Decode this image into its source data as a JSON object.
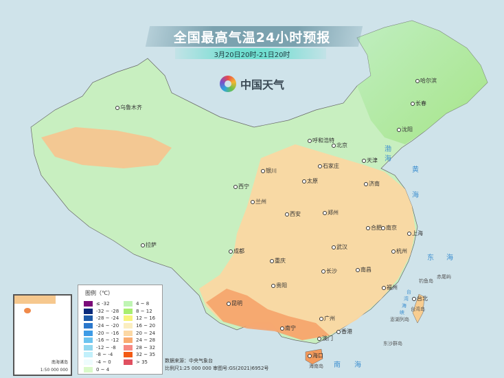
{
  "header": {
    "title": "全国最高气温24小时预报",
    "subtitle": "3月20日20时-21日20时",
    "brand": "中国天气"
  },
  "cities": [
    {
      "name": "哈尔滨"
    },
    {
      "name": "长春"
    },
    {
      "name": "沈阳"
    },
    {
      "name": "乌鲁木齐"
    },
    {
      "name": "呼和浩特"
    },
    {
      "name": "北京"
    },
    {
      "name": "天津"
    },
    {
      "name": "石家庄"
    },
    {
      "name": "太原"
    },
    {
      "name": "济南"
    },
    {
      "name": "银川"
    },
    {
      "name": "西宁"
    },
    {
      "name": "兰州"
    },
    {
      "name": "郑州"
    },
    {
      "name": "西安"
    },
    {
      "name": "合肥"
    },
    {
      "name": "南京"
    },
    {
      "name": "上海"
    },
    {
      "name": "拉萨"
    },
    {
      "name": "成都"
    },
    {
      "name": "武汉"
    },
    {
      "name": "杭州"
    },
    {
      "name": "重庆"
    },
    {
      "name": "长沙"
    },
    {
      "name": "南昌"
    },
    {
      "name": "贵阳"
    },
    {
      "name": "福州"
    },
    {
      "name": "台北"
    },
    {
      "name": "昆明"
    },
    {
      "name": "广州"
    },
    {
      "name": "南宁"
    },
    {
      "name": "澳门"
    },
    {
      "name": "香港"
    },
    {
      "name": "海口"
    }
  ],
  "seas": [
    "渤",
    "海",
    "黄",
    "海",
    "东",
    "海",
    "南",
    "海",
    "台",
    "湾",
    "海",
    "峡"
  ],
  "islands": [
    "钓鱼岛",
    "赤尾屿",
    "台湾岛",
    "澎湖列岛",
    "东沙群岛",
    "海南岛"
  ],
  "legend": {
    "title": "图例（℃）",
    "items": [
      {
        "label": "≤ -32",
        "color": "#7a0a78"
      },
      {
        "label": "-32 ~ -28",
        "color": "#0b2a7a"
      },
      {
        "label": "-28 ~ -24",
        "color": "#1e5aa8"
      },
      {
        "label": "-24 ~ -20",
        "color": "#2b78cc"
      },
      {
        "label": "-20 ~ -16",
        "color": "#3d9be6"
      },
      {
        "label": "-16 ~ -12",
        "color": "#6cc4f0"
      },
      {
        "label": "-12 ~ -8",
        "color": "#93d8f0"
      },
      {
        "label": "-8 ~ -4",
        "color": "#c2f0fb"
      },
      {
        "label": "-4 ~ 0",
        "color": "#eefcfd"
      },
      {
        "label": "0 ~ 4",
        "color": "#d9f9c9"
      },
      {
        "label": "4 ~ 8",
        "color": "#bff5b3"
      },
      {
        "label": "8 ~ 12",
        "color": "#a8ee70"
      },
      {
        "label": "12 ~ 16",
        "color": "#f8f47c"
      },
      {
        "label": "16 ~ 20",
        "color": "#fbeec0"
      },
      {
        "label": "20 ~ 24",
        "color": "#fcd8a4"
      },
      {
        "label": "24 ~ 28",
        "color": "#f9ab70"
      },
      {
        "label": "28 ~ 32",
        "color": "#f68a84"
      },
      {
        "label": "32 ~ 35",
        "color": "#f35a14"
      },
      {
        "label": "> 35",
        "color": "#e05060"
      }
    ]
  },
  "footer": {
    "source": "数据来源：中央气象台",
    "scale": "比例尺1:25 000 000    审图号:GS(2021)6952号"
  },
  "inset": {
    "label": "南海诸岛",
    "scale": "1:50 000 000"
  }
}
